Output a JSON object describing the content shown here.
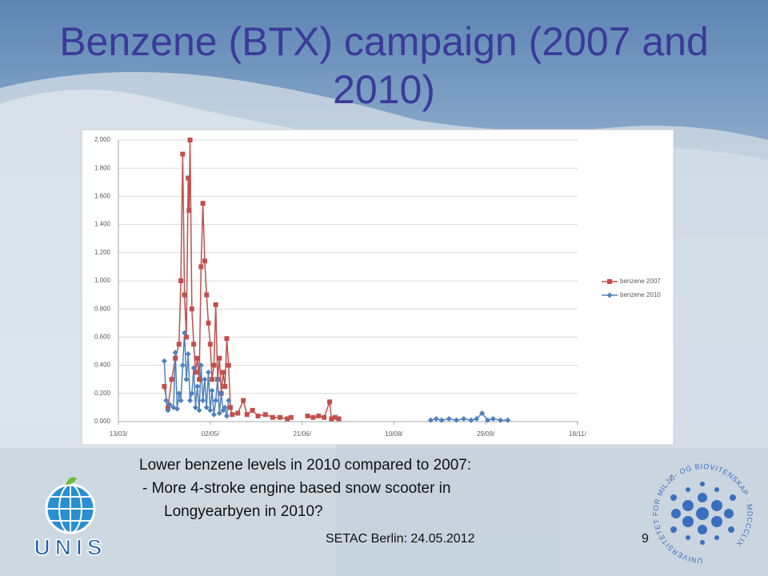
{
  "slide": {
    "title": "Benzene (BTX) campaign (2007 and 2010)",
    "body": [
      "Lower benzene levels in 2010 compared to 2007:",
      "-  More 4-stroke  engine based snow scooter in",
      "Longyearbyen in 2010?"
    ],
    "footer": "SETAC Berlin: 24.05.2012",
    "page_number": "9",
    "left_logo_text": "UNIS",
    "right_logo_text": "UNIVERSITETET FOR MILJØ- OG BIOVITENSKAP · MDCCCLIX"
  },
  "chart_data": {
    "type": "line",
    "xlim": [
      0,
      250
    ],
    "xticks": [
      {
        "value": 0,
        "label": "13/03/"
      },
      {
        "value": 50,
        "label": "02/05/"
      },
      {
        "value": 100,
        "label": "21/06/"
      },
      {
        "value": 150,
        "label": "10/08/"
      },
      {
        "value": 200,
        "label": "29/09/"
      },
      {
        "value": 250,
        "label": "18/11/"
      }
    ],
    "ylim": [
      0,
      2
    ],
    "yticks": [
      {
        "value": 0,
        "label": "0.000"
      },
      {
        "value": 0.2,
        "label": "0.200"
      },
      {
        "value": 0.4,
        "label": "0.400"
      },
      {
        "value": 0.6,
        "label": "0.600"
      },
      {
        "value": 0.8,
        "label": "0.800"
      },
      {
        "value": 1.0,
        "label": "1.000"
      },
      {
        "value": 1.2,
        "label": "1.200"
      },
      {
        "value": 1.4,
        "label": "1.400"
      },
      {
        "value": 1.6,
        "label": "1.600"
      },
      {
        "value": 1.8,
        "label": "1.800"
      },
      {
        "value": 2.0,
        "label": "2.000"
      }
    ],
    "grid": true,
    "legend": "right",
    "series": [
      {
        "name": "benzene 2007",
        "color": "#c0504d",
        "marker": "square",
        "x": [
          25,
          27,
          29,
          31,
          33,
          34,
          35,
          36,
          37,
          38,
          38.5,
          39,
          40,
          41,
          42,
          43,
          44,
          45,
          46,
          47,
          48,
          49,
          50,
          51,
          52,
          53,
          54,
          55,
          56,
          57,
          58,
          59,
          60,
          61,
          62,
          65,
          68,
          70,
          73,
          76,
          80,
          84,
          88,
          92,
          94,
          null,
          103,
          106,
          109,
          112,
          115,
          116,
          118,
          120
        ],
        "values": [
          0.25,
          0.1,
          0.3,
          0.45,
          0.55,
          1.0,
          1.9,
          0.9,
          0.6,
          1.73,
          1.5,
          2.0,
          0.8,
          0.55,
          0.35,
          0.45,
          0.3,
          1.1,
          1.55,
          1.14,
          0.9,
          0.7,
          0.55,
          0.3,
          0.4,
          0.83,
          0.3,
          0.45,
          0.2,
          0.35,
          0.25,
          0.59,
          0.4,
          0.1,
          0.05,
          0.06,
          0.15,
          0.05,
          0.08,
          0.04,
          0.05,
          0.03,
          0.03,
          0.02,
          0.03,
          null,
          0.04,
          0.03,
          0.04,
          0.03,
          0.14,
          0.02,
          0.03,
          0.02
        ]
      },
      {
        "name": "benzene 2010",
        "color": "#4f81bd",
        "marker": "diamond",
        "x": [
          25,
          26,
          27,
          28,
          30,
          31,
          32,
          33,
          34,
          35,
          36,
          37,
          38,
          39,
          40,
          41,
          42,
          43,
          44,
          45,
          46,
          47,
          48,
          49,
          50,
          51,
          52,
          53,
          54,
          55,
          56,
          57,
          58,
          59,
          60,
          null,
          170,
          173,
          176,
          180,
          184,
          188,
          192,
          195,
          198,
          201,
          204,
          208,
          212
        ],
        "values": [
          0.43,
          0.15,
          0.08,
          0.12,
          0.1,
          0.49,
          0.09,
          0.2,
          0.15,
          0.4,
          0.63,
          0.3,
          0.48,
          0.15,
          0.2,
          0.38,
          0.1,
          0.25,
          0.08,
          0.4,
          0.15,
          0.3,
          0.1,
          0.35,
          0.08,
          0.22,
          0.05,
          0.15,
          0.3,
          0.06,
          0.2,
          0.08,
          0.1,
          0.04,
          0.15,
          null,
          0.01,
          0.02,
          0.01,
          0.02,
          0.01,
          0.02,
          0.01,
          0.02,
          0.06,
          0.01,
          0.02,
          0.01,
          0.01
        ]
      }
    ]
  }
}
